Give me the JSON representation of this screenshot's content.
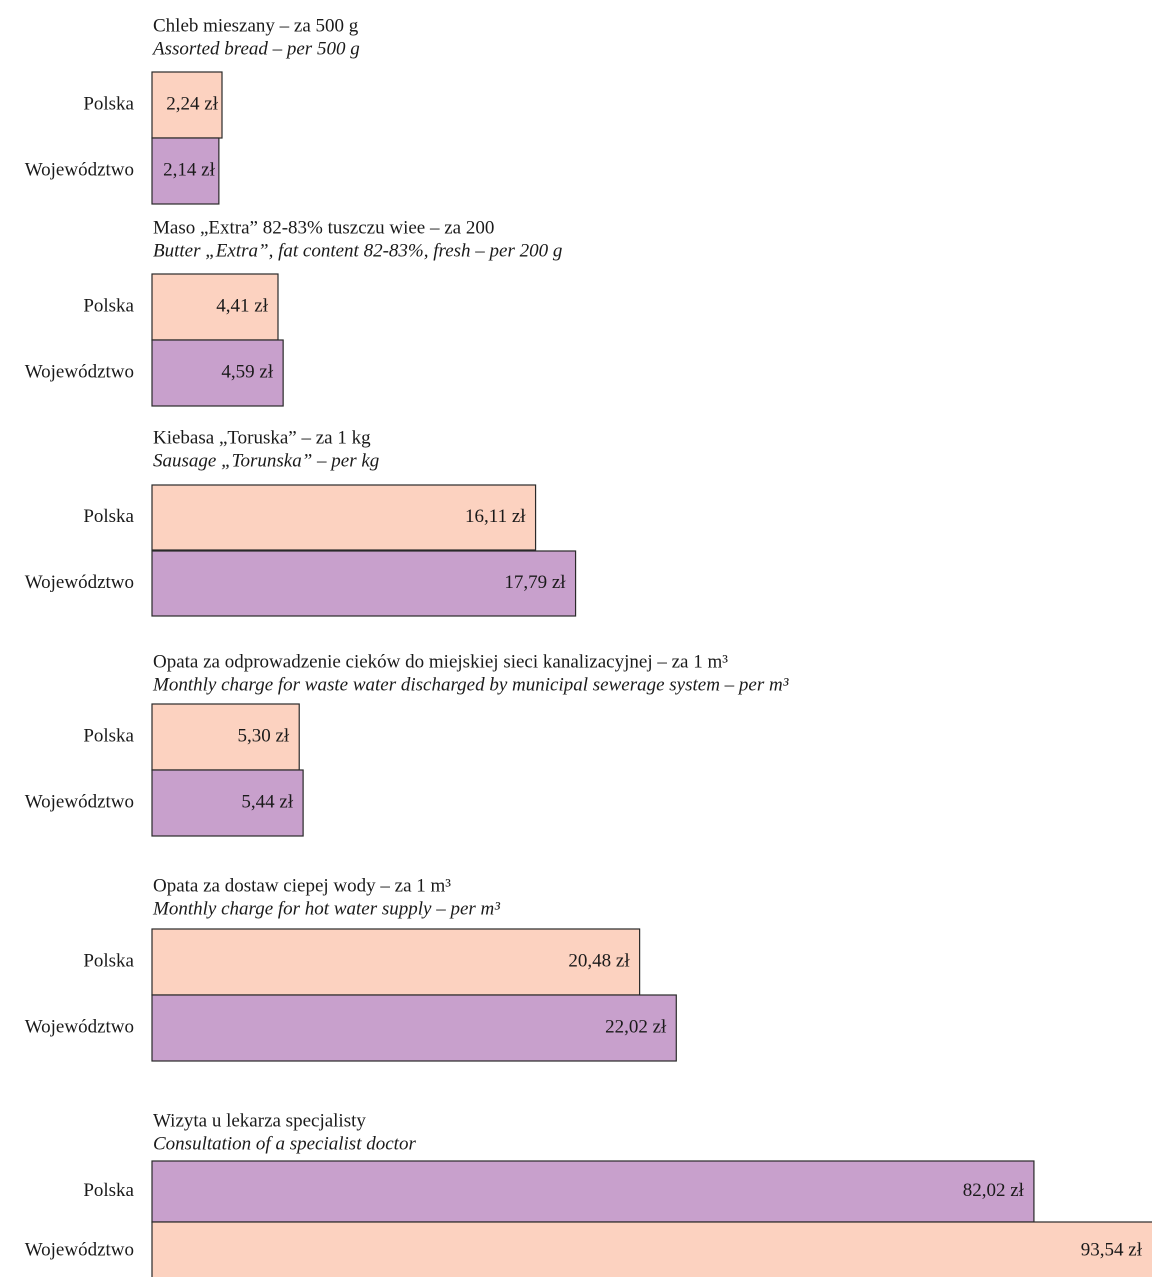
{
  "chart_data": [
    {
      "type": "bar",
      "orientation": "horizontal",
      "title": "Chleb mieszany – za 500 g",
      "subtitle": "Assorted bread  – per 500 g",
      "categories": [
        "Polska",
        "Województwo"
      ],
      "values": [
        2.24,
        2.14
      ],
      "value_labels": [
        "2,24 zł",
        "2,14 zł"
      ],
      "colors": [
        "#fcd2c0",
        "#c8a0cc"
      ],
      "xlim": [
        0,
        32
      ]
    },
    {
      "type": "bar",
      "orientation": "horizontal",
      "title": "Maso „Extra” 82-83% tuszczu wiee  –  za 200",
      "subtitle": "Butter „Extra”, fat content 82-83%, fresh – per 200 g",
      "categories": [
        "Polska",
        "Województwo"
      ],
      "values": [
        4.41,
        4.59
      ],
      "value_labels": [
        "4,41 zł",
        "4,59 zł"
      ],
      "colors": [
        "#fcd2c0",
        "#c8a0cc"
      ],
      "xlim": [
        0,
        35
      ]
    },
    {
      "type": "bar",
      "orientation": "horizontal",
      "title": "Kiebasa „Toruska” – za 1 kg",
      "subtitle": "Sausage „Torunska” – per kg",
      "categories": [
        "Polska",
        "Województwo"
      ],
      "values": [
        16.11,
        17.79
      ],
      "value_labels": [
        "16,11 zł",
        "17,79 zł"
      ],
      "colors": [
        "#fcd2c0",
        "#c8a0cc"
      ],
      "xlim": [
        0,
        42
      ]
    },
    {
      "type": "bar",
      "orientation": "horizontal",
      "title": "Opata za odprowadzenie cieków do miejskiej sieci kanalizacyjnej  – za 1 m³",
      "subtitle": "Monthly charge for waste water discharged by municipal sewerage system – per m³",
      "categories": [
        "Polska",
        "Województwo"
      ],
      "values": [
        5.3,
        5.44
      ],
      "value_labels": [
        "5,30 zł",
        "5,44 zł"
      ],
      "colors": [
        "#fcd2c0",
        "#c8a0cc"
      ],
      "xlim": [
        0,
        36
      ]
    },
    {
      "type": "bar",
      "orientation": "horizontal",
      "title": "Opata za dostaw ciepej wody – za 1 m³",
      "subtitle": "Monthly charge for hot water supply – per m³",
      "categories": [
        "Polska",
        "Województwo"
      ],
      "values": [
        20.48,
        22.02
      ],
      "value_labels": [
        "20,48 zł",
        "22,02 zł"
      ],
      "colors": [
        "#fcd2c0",
        "#c8a0cc"
      ],
      "xlim": [
        0,
        42
      ]
    },
    {
      "type": "bar",
      "orientation": "horizontal",
      "title": "Wizyta u lekarza specjalisty",
      "subtitle": "Consultation of a specialist doctor",
      "categories": [
        "Polska",
        "Województwo"
      ],
      "values": [
        82.02,
        93.54
      ],
      "value_labels": [
        "82,02 zł",
        "93,54 zł"
      ],
      "colors": [
        "#c8a0cc",
        "#fcd2c0"
      ],
      "xlim": [
        0,
        93
      ]
    }
  ]
}
